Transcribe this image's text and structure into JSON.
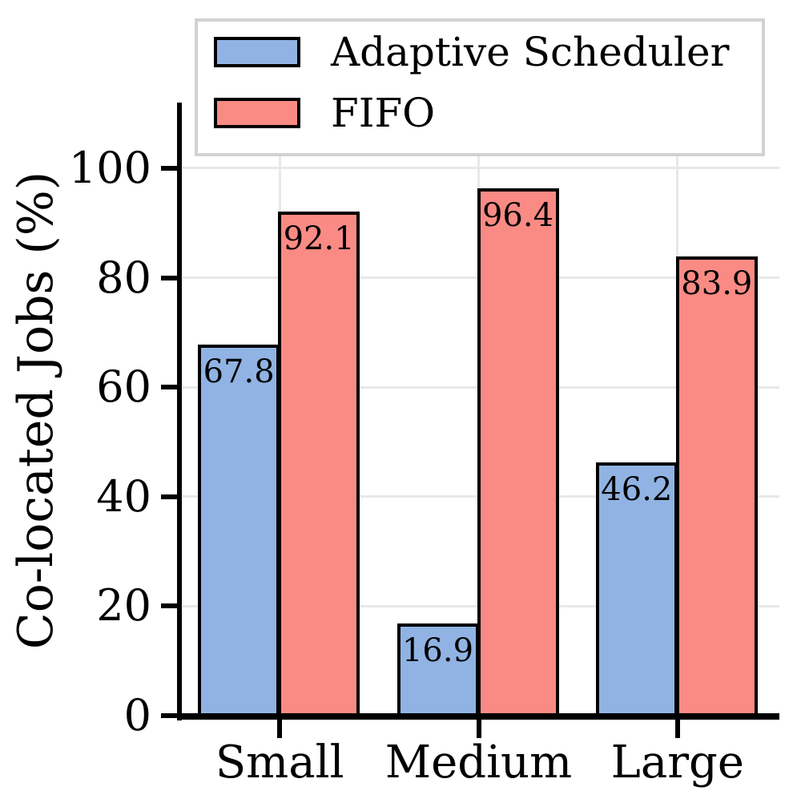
{
  "chart_data": {
    "type": "bar",
    "title": "",
    "xlabel": "",
    "ylabel": "Co-located Jobs (%)",
    "categories": [
      "Small",
      "Medium",
      "Large"
    ],
    "series": [
      {
        "name": "Adaptive Scheduler",
        "color": "#90B3E3",
        "values": [
          67.8,
          16.9,
          46.2
        ]
      },
      {
        "name": "FIFO",
        "color": "#FA8A84",
        "values": [
          92.1,
          96.4,
          83.9
        ]
      }
    ],
    "bar_value_labels": {
      "Adaptive Scheduler": [
        "67.8",
        "16.9",
        "46.2"
      ],
      "FIFO": [
        "92.1",
        "96.4",
        "83.9"
      ]
    },
    "yticks": [
      "0",
      "20",
      "40",
      "60",
      "80",
      "100"
    ],
    "ylim": [
      0,
      112
    ],
    "grid": "both",
    "legend_position": "upper center"
  },
  "colors": {
    "background": "#FFFFFF",
    "text": "#000000",
    "bar_edge": "#000000",
    "axis_line": "#000000",
    "grid_line": "#E8E8E8",
    "legend_border": "#D2D2D2",
    "series_adaptive": "#90B3E3",
    "series_fifo": "#FA8A84"
  }
}
